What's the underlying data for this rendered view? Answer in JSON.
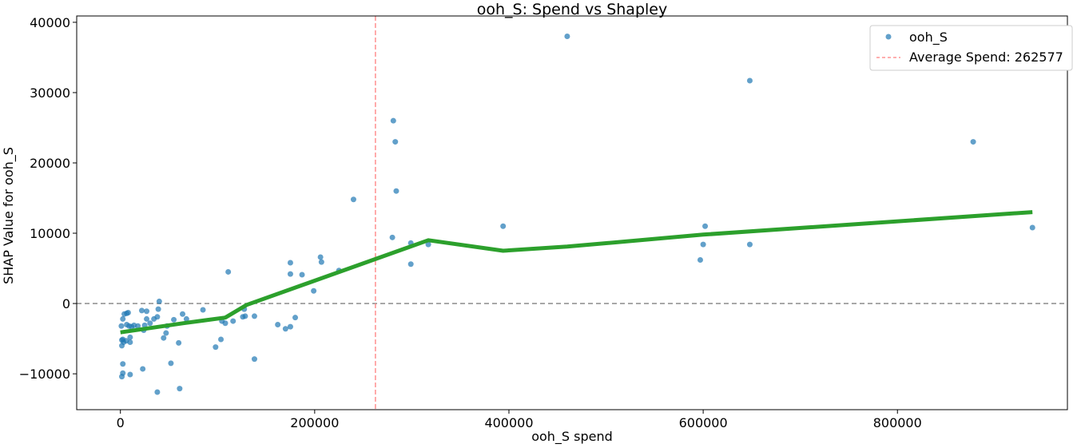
{
  "chart_data": {
    "type": "scatter",
    "title": "ooh_S: Spend vs Shapley",
    "xlabel": "ooh_S spend",
    "ylabel": "SHAP Value for ooh_S",
    "xlim": [
      -45000,
      975000
    ],
    "ylim": [
      -15100,
      40900
    ],
    "xticks": [
      0,
      200000,
      400000,
      600000,
      800000
    ],
    "xtick_labels": [
      "0",
      "200000",
      "400000",
      "600000",
      "800000"
    ],
    "yticks": [
      -10000,
      0,
      10000,
      20000,
      30000,
      40000
    ],
    "ytick_labels": [
      "−10000",
      "0",
      "10000",
      "20000",
      "30000",
      "40000"
    ],
    "grid": false,
    "legend_position": "top-right",
    "colors": {
      "points": "#1f77b4",
      "trend": "#2ca02c",
      "avg_line": "#ff7f7f",
      "zero_line": "#808080"
    },
    "average_spend": 262577,
    "legend": [
      {
        "label": "ooh_S",
        "kind": "point"
      },
      {
        "label": "Average Spend: 262577",
        "kind": "dashed-line"
      }
    ],
    "series": [
      {
        "name": "ooh_S",
        "points": [
          [
            1000,
            -3200
          ],
          [
            2500,
            -2200
          ],
          [
            4000,
            -1500
          ],
          [
            6500,
            -1400
          ],
          [
            8000,
            -1300
          ],
          [
            6500,
            -3000
          ],
          [
            9000,
            -3200
          ],
          [
            11500,
            -3300
          ],
          [
            14000,
            -3100
          ],
          [
            18000,
            -3200
          ],
          [
            22000,
            -1000
          ],
          [
            27000,
            -1100
          ],
          [
            25000,
            -3100
          ],
          [
            24000,
            -3800
          ],
          [
            27000,
            -2200
          ],
          [
            30500,
            -2800
          ],
          [
            34500,
            -2200
          ],
          [
            38000,
            -1900
          ],
          [
            39000,
            -800
          ],
          [
            40000,
            300
          ],
          [
            44500,
            -4900
          ],
          [
            47000,
            -4200
          ],
          [
            48000,
            -3200
          ],
          [
            55000,
            -2300
          ],
          [
            64000,
            -1500
          ],
          [
            68000,
            -2200
          ],
          [
            60000,
            -5600
          ],
          [
            52000,
            -8500
          ],
          [
            23000,
            -9300
          ],
          [
            38000,
            -12600
          ],
          [
            61000,
            -12100
          ],
          [
            1500,
            -5200
          ],
          [
            2500,
            -5100
          ],
          [
            3300,
            -5500
          ],
          [
            1500,
            -6000
          ],
          [
            6000,
            -5300
          ],
          [
            10000,
            -5500
          ],
          [
            10000,
            -4800
          ],
          [
            2500,
            -8600
          ],
          [
            2500,
            -9900
          ],
          [
            1500,
            -10400
          ],
          [
            10000,
            -10100
          ],
          [
            85000,
            -900
          ],
          [
            98000,
            -6200
          ],
          [
            103500,
            -5100
          ],
          [
            104500,
            -2500
          ],
          [
            108000,
            -2800
          ],
          [
            116000,
            -2500
          ],
          [
            111000,
            4500
          ],
          [
            126000,
            -1900
          ],
          [
            128500,
            -1800
          ],
          [
            127500,
            -800
          ],
          [
            138000,
            -1800
          ],
          [
            138000,
            -7900
          ],
          [
            162000,
            -3000
          ],
          [
            170000,
            -3600
          ],
          [
            175000,
            -3300
          ],
          [
            180000,
            -2000
          ],
          [
            175000,
            4200
          ],
          [
            175000,
            5800
          ],
          [
            187000,
            4100
          ],
          [
            199000,
            1800
          ],
          [
            206000,
            6600
          ],
          [
            207000,
            5900
          ],
          [
            225000,
            4700
          ],
          [
            240000,
            14800
          ],
          [
            281000,
            26000
          ],
          [
            283000,
            23000
          ],
          [
            284000,
            16000
          ],
          [
            280000,
            9400
          ],
          [
            299000,
            8600
          ],
          [
            299000,
            5600
          ],
          [
            317000,
            8400
          ],
          [
            394000,
            11000
          ],
          [
            460000,
            38000
          ],
          [
            597000,
            6200
          ],
          [
            600000,
            8400
          ],
          [
            602000,
            11000
          ],
          [
            648000,
            31700
          ],
          [
            648000,
            8400
          ],
          [
            878000,
            23000
          ],
          [
            939000,
            10800
          ]
        ]
      },
      {
        "name": "trend",
        "points": [
          [
            0,
            -4100
          ],
          [
            65000,
            -2800
          ],
          [
            108000,
            -2000
          ],
          [
            130000,
            -200
          ],
          [
            317000,
            9000
          ],
          [
            394000,
            7500
          ],
          [
            460000,
            8100
          ],
          [
            600000,
            9800
          ],
          [
            939000,
            13000
          ]
        ]
      }
    ]
  }
}
